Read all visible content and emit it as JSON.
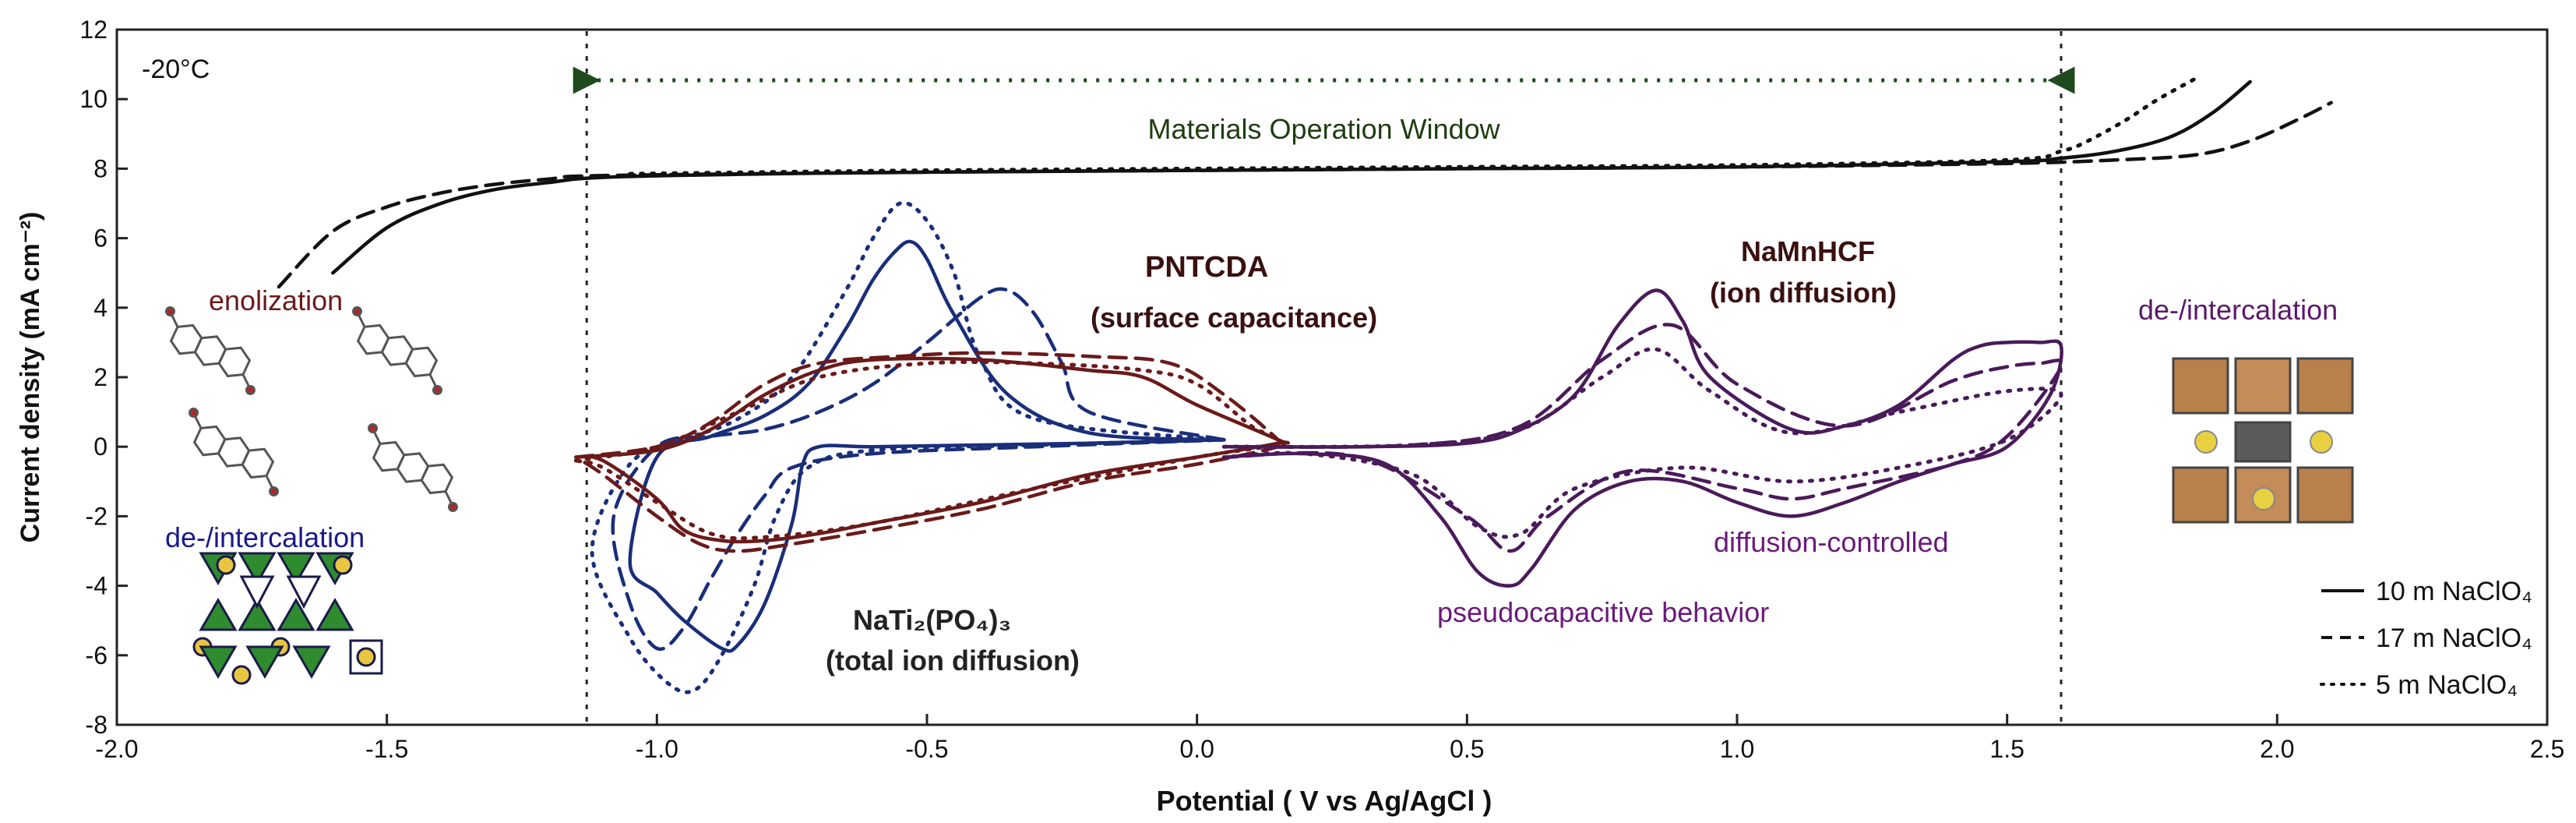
{
  "chart_data": {
    "type": "line",
    "xlabel": "Potential ( V vs Ag/AgCl )",
    "ylabel": "Current density (mA cm⁻²)",
    "xlim": [
      -2.0,
      2.5
    ],
    "ylim": [
      -8,
      12
    ],
    "xticks": [
      -2.0,
      -1.5,
      -1.0,
      -0.5,
      0.0,
      0.5,
      1.0,
      1.5,
      2.0,
      2.5
    ],
    "xtick_labels": [
      "-2.0",
      "-1.5",
      "-1.0",
      "-0.5",
      "0.0",
      "0.5",
      "1.0",
      "1.5",
      "2.0",
      "2.5"
    ],
    "yticks": [
      -8,
      -6,
      -4,
      -2,
      0,
      2,
      4,
      6,
      8,
      10,
      12
    ],
    "ytick_labels": [
      "-8",
      "-6",
      "-4",
      "-2",
      "0",
      "2",
      "4",
      "6",
      "8",
      "10",
      "12"
    ],
    "temperature": "-20°C",
    "window": {
      "label": "Materials Operation Window",
      "start": -1.13,
      "end": 1.6
    },
    "legend": {
      "position": "bottom-right",
      "entries": [
        {
          "label": "10 m NaClO₄",
          "style": "solid"
        },
        {
          "label": "17 m NaClO₄",
          "style": "dashed"
        },
        {
          "label": "5 m NaClO₄",
          "style": "dotted"
        }
      ]
    },
    "annotations": [
      {
        "text": "enolization",
        "color": "#6b1a1a"
      },
      {
        "text": "de-/intercalation",
        "color": "#1a1a8a"
      },
      {
        "text": "PNTCDA",
        "color": "#3a1010"
      },
      {
        "text": "(surface capacitance)",
        "color": "#3a1010"
      },
      {
        "text": "NaMnHCF",
        "color": "#3a1010"
      },
      {
        "text": "(ion diffusion)",
        "color": "#3a1010"
      },
      {
        "text": "de-/intercalation",
        "color": "#5a1a6a"
      },
      {
        "text": "diffusion-controlled",
        "color": "#6a1a7a"
      },
      {
        "text": "pseudocapacitive behavior",
        "color": "#6a1a7a"
      },
      {
        "text": "NaTi₂(PO₄)₃",
        "color": "#222222"
      },
      {
        "text": "(total ion diffusion)",
        "color": "#222222"
      }
    ],
    "series": [
      {
        "name": "ESW 10 m NaClO4 (solid)",
        "color": "#111111",
        "style": "solid",
        "x": [
          -1.6,
          -1.5,
          -1.4,
          -1.3,
          -1.2,
          -1.1,
          -0.8,
          -0.5,
          0.0,
          0.5,
          1.0,
          1.5,
          1.6,
          1.7,
          1.8,
          1.88,
          1.95
        ],
        "y": [
          5.0,
          6.3,
          7.0,
          7.4,
          7.6,
          7.75,
          7.85,
          7.9,
          7.95,
          8.0,
          8.05,
          8.2,
          8.3,
          8.5,
          8.9,
          9.6,
          10.5
        ]
      },
      {
        "name": "ESW 17 m NaClO4 (dashed)",
        "color": "#111111",
        "style": "dashed",
        "x": [
          -1.7,
          -1.6,
          -1.5,
          -1.4,
          -1.3,
          -1.2,
          -1.1,
          -0.5,
          0.0,
          0.5,
          1.0,
          1.5,
          1.7,
          1.85,
          1.95,
          2.05,
          2.1
        ],
        "y": [
          4.6,
          6.2,
          6.9,
          7.3,
          7.55,
          7.7,
          7.8,
          7.9,
          7.95,
          8.0,
          8.05,
          8.15,
          8.25,
          8.4,
          8.8,
          9.5,
          9.9
        ]
      },
      {
        "name": "ESW 5 m NaClO4 (dotted)",
        "color": "#111111",
        "style": "dotted",
        "x": [
          -1.05,
          -0.8,
          -0.5,
          0.0,
          0.5,
          1.0,
          1.5,
          1.6,
          1.65,
          1.72,
          1.78,
          1.85
        ],
        "y": [
          7.85,
          7.9,
          7.95,
          8.0,
          8.05,
          8.1,
          8.25,
          8.5,
          8.8,
          9.4,
          10.0,
          10.6
        ]
      },
      {
        "name": "NaTi2(PO4)3 CV 10 m (solid)",
        "color": "#1a2e7a",
        "style": "solid",
        "x": [
          0.05,
          -0.2,
          -0.35,
          -0.45,
          -0.5,
          -0.53,
          -0.56,
          -0.6,
          -0.65,
          -0.72,
          -0.8,
          -0.9,
          -1.0,
          -1.05,
          -1.0,
          -0.95,
          -0.88,
          -0.85,
          -0.8,
          -0.75,
          -0.73,
          -0.7,
          -0.6,
          -0.4,
          -0.2,
          0.05
        ],
        "y": [
          0.2,
          0.4,
          1.5,
          3.8,
          5.4,
          5.9,
          5.6,
          4.8,
          3.4,
          1.8,
          0.9,
          0.3,
          -0.3,
          -3.3,
          -4.2,
          -5.0,
          -5.8,
          -5.7,
          -4.5,
          -2.2,
          -0.5,
          0.0,
          0.0,
          0.05,
          0.1,
          0.2
        ]
      },
      {
        "name": "NaTi2(PO4)3 CV 17 m (dashed)",
        "color": "#1a2e7a",
        "style": "dashed",
        "x": [
          0.05,
          -0.2,
          -0.25,
          -0.3,
          -0.35,
          -0.4,
          -0.5,
          -0.6,
          -0.7,
          -0.8,
          -0.9,
          -1.0,
          -1.08,
          -1.05,
          -1.0,
          -0.95,
          -0.9,
          -0.85,
          -0.8,
          -0.75,
          -0.6,
          -0.3,
          0.05
        ],
        "y": [
          0.2,
          1.0,
          2.4,
          3.8,
          4.5,
          4.3,
          3.0,
          1.8,
          1.0,
          0.5,
          0.3,
          0.0,
          -2.0,
          -4.5,
          -5.8,
          -5.2,
          -3.8,
          -2.5,
          -1.4,
          -0.6,
          -0.2,
          0.0,
          0.2
        ]
      },
      {
        "name": "NaTi2(PO4)3 CV 5 m (dotted)",
        "color": "#1a2e7a",
        "style": "dotted",
        "x": [
          0.05,
          -0.3,
          -0.4,
          -0.45,
          -0.5,
          -0.55,
          -0.6,
          -0.65,
          -0.75,
          -0.85,
          -0.95,
          -1.05,
          -1.12,
          -1.05,
          -0.98,
          -0.93,
          -0.88,
          -0.82,
          -0.78,
          -0.72,
          -0.6,
          -0.3,
          0.05
        ],
        "y": [
          0.2,
          0.8,
          2.5,
          5.0,
          6.5,
          7.0,
          6.0,
          4.5,
          2.0,
          0.8,
          0.2,
          -0.5,
          -3.0,
          -5.5,
          -6.8,
          -7.0,
          -6.0,
          -4.0,
          -2.0,
          -0.6,
          -0.1,
          0.05,
          0.2
        ]
      },
      {
        "name": "PNTCDA CV 10 m (solid)",
        "color": "#6b1a1a",
        "style": "solid",
        "x": [
          -1.15,
          -1.0,
          -0.9,
          -0.8,
          -0.7,
          -0.6,
          -0.4,
          -0.2,
          -0.1,
          0.0,
          0.15,
          0.15,
          0.0,
          -0.2,
          -0.4,
          -0.6,
          -0.7,
          -0.8,
          -0.88,
          -0.95,
          -1.0,
          -1.1,
          -1.15
        ],
        "y": [
          -0.3,
          -0.1,
          0.5,
          1.5,
          2.2,
          2.5,
          2.5,
          2.2,
          2.0,
          1.2,
          0.2,
          0.1,
          -0.3,
          -0.8,
          -1.6,
          -2.2,
          -2.5,
          -2.7,
          -2.7,
          -2.4,
          -1.5,
          -0.4,
          -0.3
        ]
      },
      {
        "name": "PNTCDA CV 17 m (dashed)",
        "color": "#6b1a1a",
        "style": "dashed",
        "x": [
          -1.15,
          -1.0,
          -0.9,
          -0.8,
          -0.7,
          -0.55,
          -0.4,
          -0.2,
          -0.05,
          0.05,
          0.15,
          0.15,
          0.0,
          -0.2,
          -0.4,
          -0.6,
          -0.75,
          -0.85,
          -0.92,
          -1.0,
          -1.1,
          -1.15
        ],
        "y": [
          -0.3,
          0.0,
          0.7,
          1.8,
          2.4,
          2.6,
          2.7,
          2.6,
          2.4,
          1.5,
          0.2,
          0.0,
          -0.5,
          -1.0,
          -1.8,
          -2.4,
          -2.8,
          -3.0,
          -2.8,
          -2.0,
          -0.8,
          -0.3
        ]
      },
      {
        "name": "PNTCDA CV 5 m (dotted)",
        "color": "#6b1a1a",
        "style": "dotted",
        "x": [
          -1.15,
          -1.0,
          -0.85,
          -0.7,
          -0.5,
          -0.3,
          -0.1,
          0.0,
          0.1,
          0.15,
          0.0,
          -0.3,
          -0.6,
          -0.8,
          -0.9,
          -1.0,
          -1.1,
          -1.15
        ],
        "y": [
          -0.4,
          0.0,
          1.0,
          2.0,
          2.4,
          2.4,
          2.2,
          1.8,
          0.6,
          0.1,
          -0.3,
          -1.2,
          -2.2,
          -2.6,
          -2.5,
          -1.6,
          -0.6,
          -0.4
        ]
      },
      {
        "name": "NaMnHCF CV 10 m (solid)",
        "color": "#4a1a5a",
        "style": "solid",
        "x": [
          0.05,
          0.3,
          0.5,
          0.6,
          0.7,
          0.78,
          0.85,
          0.9,
          0.95,
          1.1,
          1.2,
          1.3,
          1.4,
          1.45,
          1.5,
          1.56,
          1.6,
          1.58,
          1.5,
          1.4,
          1.3,
          1.2,
          1.1,
          1.0,
          0.9,
          0.8,
          0.7,
          0.62,
          0.58,
          0.52,
          0.45,
          0.35,
          0.2,
          0.05
        ],
        "y": [
          0.0,
          0.0,
          0.1,
          0.5,
          1.5,
          3.5,
          4.5,
          3.6,
          2.0,
          0.5,
          0.6,
          1.2,
          2.5,
          2.9,
          3.0,
          3.0,
          2.9,
          1.5,
          0.0,
          -0.5,
          -1.0,
          -1.6,
          -2.0,
          -1.6,
          -1.0,
          -1.0,
          -1.8,
          -3.5,
          -4.0,
          -3.6,
          -2.0,
          -0.5,
          -0.2,
          -0.3
        ]
      },
      {
        "name": "NaMnHCF CV 17 m (dashed)",
        "color": "#4a1a5a",
        "style": "dashed",
        "x": [
          0.05,
          0.4,
          0.6,
          0.75,
          0.88,
          1.0,
          1.2,
          1.4,
          1.5,
          1.56,
          1.6,
          1.5,
          1.4,
          1.2,
          1.1,
          1.0,
          0.8,
          0.65,
          0.58,
          0.5,
          0.3,
          0.05
        ],
        "y": [
          0.0,
          0.05,
          0.6,
          2.5,
          3.5,
          1.8,
          0.6,
          1.9,
          2.3,
          2.4,
          2.3,
          0.3,
          -0.5,
          -1.2,
          -1.5,
          -1.2,
          -0.7,
          -2.0,
          -3.0,
          -2.0,
          -0.3,
          -0.3
        ]
      },
      {
        "name": "NaMnHCF CV 5 m (dotted)",
        "color": "#4a1a5a",
        "style": "dotted",
        "x": [
          0.05,
          0.4,
          0.6,
          0.75,
          0.85,
          0.95,
          1.1,
          1.3,
          1.5,
          1.6,
          1.5,
          1.3,
          1.1,
          0.9,
          0.7,
          0.6,
          0.52,
          0.4,
          0.2,
          0.05
        ],
        "y": [
          0.0,
          0.05,
          0.5,
          2.0,
          2.8,
          1.6,
          0.4,
          1.0,
          1.6,
          1.5,
          0.2,
          -0.6,
          -1.0,
          -0.6,
          -1.2,
          -2.5,
          -2.3,
          -0.8,
          -0.2,
          -0.3
        ]
      }
    ]
  }
}
